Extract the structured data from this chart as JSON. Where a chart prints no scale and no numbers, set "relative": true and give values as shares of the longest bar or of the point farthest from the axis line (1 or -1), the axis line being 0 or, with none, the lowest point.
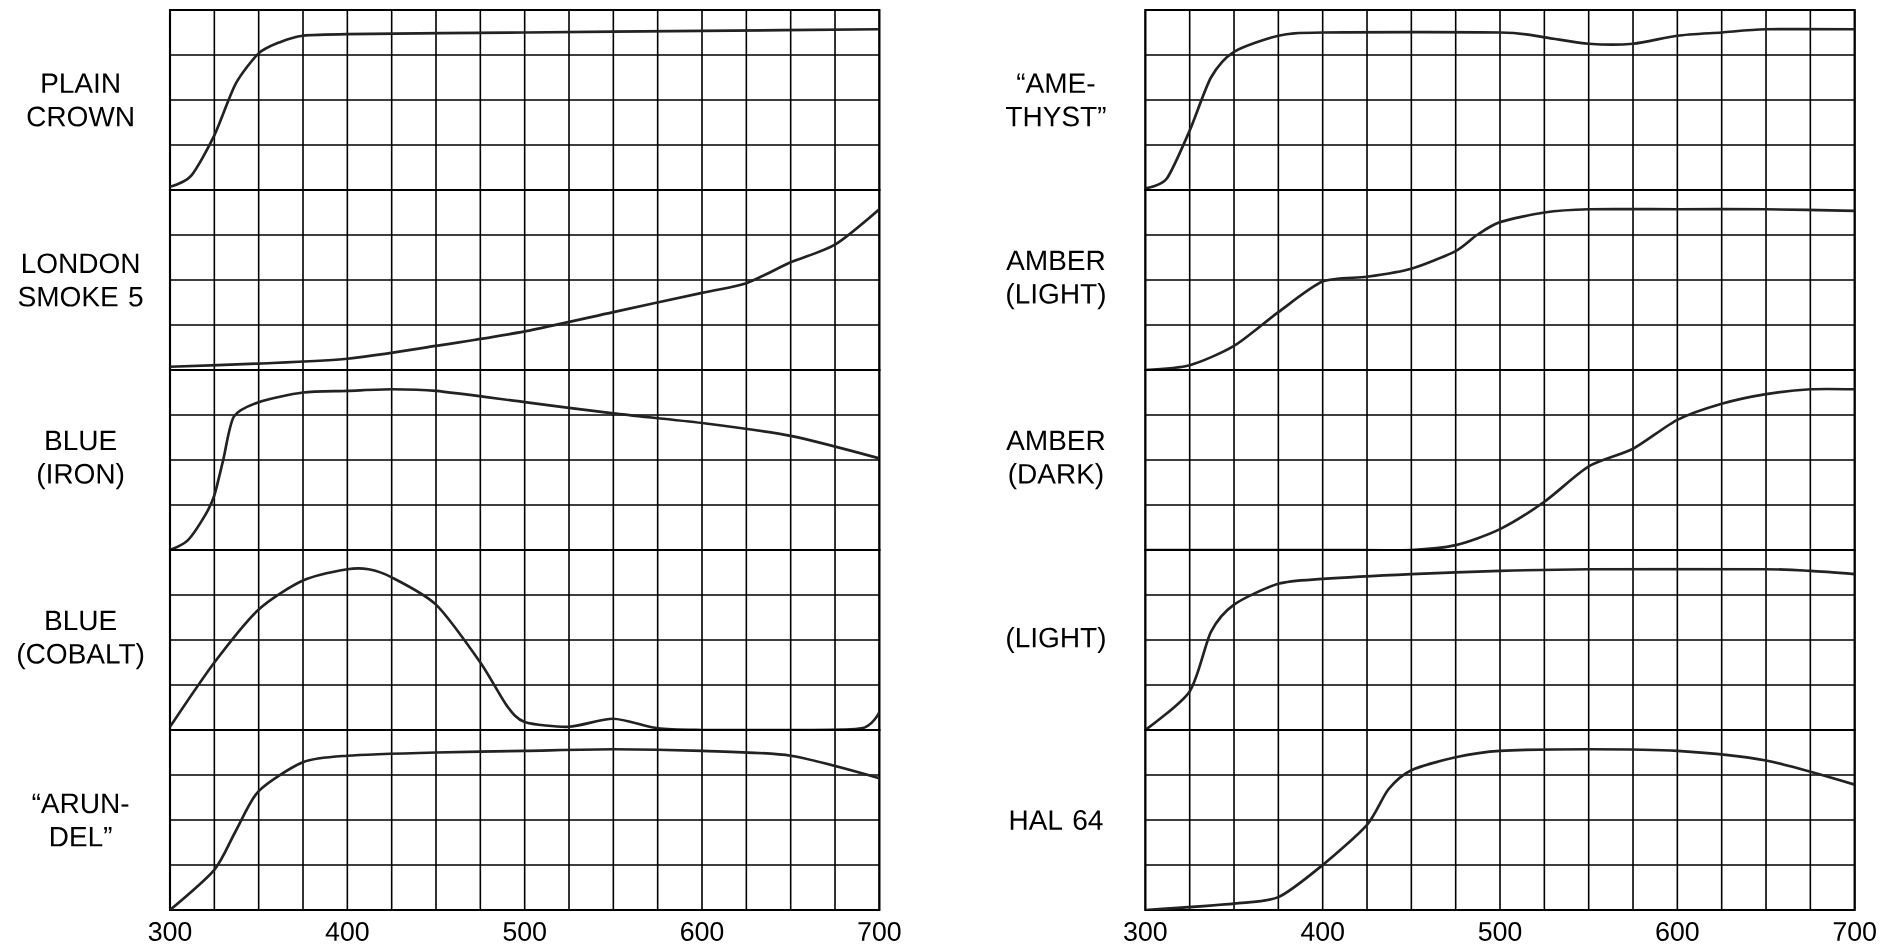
{
  "chart_data": [
    {
      "type": "line",
      "ylabel": "PLAIN CROWN",
      "relative": true,
      "grid": true,
      "marker": "none",
      "color": "#222222",
      "tick_labels": false,
      "xlim": [
        300,
        700
      ],
      "xticks": [
        300,
        {
          "value": 325,
          "label": null
        },
        {
          "value": 350,
          "label": null
        },
        {
          "value": 375,
          "label": null
        },
        400,
        {
          "value": 425,
          "label": null
        },
        {
          "value": 450,
          "label": null
        },
        {
          "value": 475,
          "label": null
        },
        500,
        {
          "value": 525,
          "label": null
        },
        {
          "value": 550,
          "label": null
        },
        {
          "value": 575,
          "label": null
        },
        600,
        {
          "value": 625,
          "label": null
        },
        {
          "value": 650,
          "label": null
        },
        {
          "value": 675,
          "label": null
        },
        700
      ],
      "x": [
        300,
        312,
        325,
        337,
        350,
        362,
        375,
        400,
        500,
        600,
        700
      ],
      "values": [
        0.02,
        0.09,
        0.34,
        0.66,
        0.85,
        0.92,
        0.96,
        0.97,
        0.98,
        0.99,
        1
      ]
    },
    {
      "type": "line",
      "ylabel": "LONDON SMOKE 5",
      "relative": true,
      "grid": true,
      "marker": "none",
      "color": "#222222",
      "tick_labels": false,
      "xlim": [
        300,
        700
      ],
      "xticks": [
        300,
        {
          "value": 325,
          "label": null
        },
        {
          "value": 350,
          "label": null
        },
        {
          "value": 375,
          "label": null
        },
        400,
        {
          "value": 425,
          "label": null
        },
        {
          "value": 450,
          "label": null
        },
        {
          "value": 475,
          "label": null
        },
        500,
        {
          "value": 525,
          "label": null
        },
        {
          "value": 550,
          "label": null
        },
        {
          "value": 575,
          "label": null
        },
        600,
        {
          "value": 625,
          "label": null
        },
        {
          "value": 650,
          "label": null
        },
        {
          "value": 675,
          "label": null
        },
        700
      ],
      "x": [
        300,
        350,
        400,
        450,
        500,
        550,
        600,
        625,
        650,
        675,
        700
      ],
      "values": [
        0.02,
        0.04,
        0.07,
        0.15,
        0.24,
        0.36,
        0.48,
        0.54,
        0.67,
        0.78,
        1
      ]
    },
    {
      "type": "line",
      "ylabel": "BLUE (IRON)",
      "relative": true,
      "grid": true,
      "marker": "none",
      "color": "#222222",
      "tick_labels": false,
      "xlim": [
        300,
        700
      ],
      "xticks": [
        300,
        {
          "value": 325,
          "label": null
        },
        {
          "value": 350,
          "label": null
        },
        {
          "value": 375,
          "label": null
        },
        400,
        {
          "value": 425,
          "label": null
        },
        {
          "value": 450,
          "label": null
        },
        {
          "value": 475,
          "label": null
        },
        500,
        {
          "value": 525,
          "label": null
        },
        {
          "value": 550,
          "label": null
        },
        {
          "value": 575,
          "label": null
        },
        600,
        {
          "value": 625,
          "label": null
        },
        {
          "value": 650,
          "label": null
        },
        {
          "value": 675,
          "label": null
        },
        700
      ],
      "x": [
        300,
        310,
        320,
        325,
        330,
        336,
        350,
        375,
        400,
        425,
        450,
        500,
        550,
        600,
        650,
        700
      ],
      "values": [
        0,
        0.06,
        0.22,
        0.34,
        0.56,
        0.83,
        0.92,
        0.98,
        0.99,
        1,
        0.99,
        0.92,
        0.85,
        0.79,
        0.71,
        0.57
      ]
    },
    {
      "type": "line",
      "ylabel": "BLUE (COBALT)",
      "relative": true,
      "grid": true,
      "marker": "none",
      "color": "#222222",
      "tick_labels": false,
      "xlim": [
        300,
        700
      ],
      "xticks": [
        300,
        {
          "value": 325,
          "label": null
        },
        {
          "value": 350,
          "label": null
        },
        {
          "value": 375,
          "label": null
        },
        400,
        {
          "value": 425,
          "label": null
        },
        {
          "value": 450,
          "label": null
        },
        {
          "value": 475,
          "label": null
        },
        500,
        {
          "value": 525,
          "label": null
        },
        {
          "value": 550,
          "label": null
        },
        {
          "value": 575,
          "label": null
        },
        600,
        {
          "value": 625,
          "label": null
        },
        {
          "value": 650,
          "label": null
        },
        {
          "value": 675,
          "label": null
        },
        700
      ],
      "x": [
        300,
        325,
        350,
        375,
        400,
        412,
        425,
        450,
        475,
        490,
        500,
        525,
        550,
        575,
        600,
        650,
        690,
        700
      ],
      "values": [
        0.02,
        0.42,
        0.75,
        0.93,
        1,
        1,
        0.95,
        0.78,
        0.42,
        0.15,
        0.05,
        0.02,
        0.07,
        0.01,
        0,
        0,
        0.01,
        0.11
      ]
    },
    {
      "type": "line",
      "ylabel": "“ARUN-DEL”",
      "relative": true,
      "grid": true,
      "marker": "none",
      "color": "#222222",
      "tick_labels": "x",
      "xlim": [
        300,
        700
      ],
      "xticks": [
        300,
        {
          "value": 325,
          "label": null
        },
        {
          "value": 350,
          "label": null
        },
        {
          "value": 375,
          "label": null
        },
        400,
        {
          "value": 425,
          "label": null
        },
        {
          "value": 450,
          "label": null
        },
        {
          "value": 475,
          "label": null
        },
        500,
        {
          "value": 525,
          "label": null
        },
        {
          "value": 550,
          "label": null
        },
        {
          "value": 575,
          "label": null
        },
        600,
        {
          "value": 625,
          "label": null
        },
        {
          "value": 650,
          "label": null
        },
        {
          "value": 675,
          "label": null
        },
        700
      ],
      "x": [
        300,
        325,
        337,
        350,
        375,
        400,
        450,
        500,
        550,
        600,
        650,
        700
      ],
      "values": [
        0,
        0.25,
        0.49,
        0.74,
        0.92,
        0.96,
        0.98,
        0.99,
        1,
        0.99,
        0.96,
        0.82
      ]
    },
    {
      "type": "line",
      "ylabel": "“AME-THYST”",
      "relative": true,
      "grid": true,
      "marker": "none",
      "color": "#222222",
      "tick_labels": false,
      "xlim": [
        300,
        700
      ],
      "xticks": [
        300,
        {
          "value": 325,
          "label": null
        },
        {
          "value": 350,
          "label": null
        },
        {
          "value": 375,
          "label": null
        },
        400,
        {
          "value": 425,
          "label": null
        },
        {
          "value": 450,
          "label": null
        },
        {
          "value": 475,
          "label": null
        },
        500,
        {
          "value": 525,
          "label": null
        },
        {
          "value": 550,
          "label": null
        },
        {
          "value": 575,
          "label": null
        },
        600,
        {
          "value": 625,
          "label": null
        },
        {
          "value": 650,
          "label": null
        },
        {
          "value": 675,
          "label": null
        },
        700
      ],
      "x": [
        300,
        312,
        325,
        337,
        350,
        375,
        400,
        500,
        525,
        550,
        575,
        600,
        625,
        650,
        700
      ],
      "values": [
        0.01,
        0.07,
        0.37,
        0.7,
        0.86,
        0.96,
        0.98,
        0.98,
        0.95,
        0.91,
        0.91,
        0.96,
        0.98,
        1,
        1
      ]
    },
    {
      "type": "line",
      "ylabel": "AMBER (LIGHT)",
      "relative": true,
      "grid": true,
      "marker": "none",
      "color": "#222222",
      "tick_labels": false,
      "xlim": [
        300,
        700
      ],
      "xticks": [
        300,
        {
          "value": 325,
          "label": null
        },
        {
          "value": 350,
          "label": null
        },
        {
          "value": 375,
          "label": null
        },
        400,
        {
          "value": 425,
          "label": null
        },
        {
          "value": 450,
          "label": null
        },
        {
          "value": 475,
          "label": null
        },
        500,
        {
          "value": 525,
          "label": null
        },
        {
          "value": 550,
          "label": null
        },
        {
          "value": 575,
          "label": null
        },
        600,
        {
          "value": 625,
          "label": null
        },
        {
          "value": 650,
          "label": null
        },
        {
          "value": 675,
          "label": null
        },
        700
      ],
      "x": [
        300,
        325,
        350,
        375,
        400,
        425,
        450,
        475,
        487,
        500,
        525,
        550,
        600,
        650,
        700
      ],
      "values": [
        0,
        0.03,
        0.15,
        0.36,
        0.55,
        0.58,
        0.63,
        0.74,
        0.84,
        0.92,
        0.98,
        1,
        1,
        1,
        0.99
      ]
    },
    {
      "type": "line",
      "ylabel": "AMBER (DARK)",
      "relative": true,
      "grid": true,
      "marker": "none",
      "color": "#222222",
      "tick_labels": false,
      "xlim": [
        300,
        700
      ],
      "xticks": [
        300,
        {
          "value": 325,
          "label": null
        },
        {
          "value": 350,
          "label": null
        },
        {
          "value": 375,
          "label": null
        },
        400,
        {
          "value": 425,
          "label": null
        },
        {
          "value": 450,
          "label": null
        },
        {
          "value": 475,
          "label": null
        },
        500,
        {
          "value": 525,
          "label": null
        },
        {
          "value": 550,
          "label": null
        },
        {
          "value": 575,
          "label": null
        },
        600,
        {
          "value": 625,
          "label": null
        },
        {
          "value": 650,
          "label": null
        },
        {
          "value": 675,
          "label": null
        },
        700
      ],
      "x": [
        300,
        400,
        450,
        475,
        500,
        525,
        550,
        575,
        600,
        625,
        650,
        675,
        700
      ],
      "values": [
        0,
        0,
        0,
        0.03,
        0.13,
        0.3,
        0.52,
        0.63,
        0.81,
        0.91,
        0.97,
        1,
        1
      ]
    },
    {
      "type": "line",
      "ylabel": "(LIGHT)",
      "relative": true,
      "grid": true,
      "marker": "none",
      "color": "#222222",
      "tick_labels": false,
      "xlim": [
        300,
        700
      ],
      "xticks": [
        300,
        {
          "value": 325,
          "label": null
        },
        {
          "value": 350,
          "label": null
        },
        {
          "value": 375,
          "label": null
        },
        400,
        {
          "value": 425,
          "label": null
        },
        {
          "value": 450,
          "label": null
        },
        {
          "value": 475,
          "label": null
        },
        500,
        {
          "value": 525,
          "label": null
        },
        {
          "value": 550,
          "label": null
        },
        {
          "value": 575,
          "label": null
        },
        600,
        {
          "value": 625,
          "label": null
        },
        {
          "value": 650,
          "label": null
        },
        {
          "value": 675,
          "label": null
        },
        700
      ],
      "x": [
        300,
        325,
        337,
        350,
        375,
        400,
        450,
        500,
        550,
        650,
        675,
        700
      ],
      "values": [
        0,
        0.24,
        0.61,
        0.78,
        0.91,
        0.94,
        0.97,
        0.99,
        1,
        1,
        0.99,
        0.97
      ]
    },
    {
      "type": "line",
      "ylabel": "HAL 64",
      "relative": true,
      "grid": true,
      "marker": "none",
      "color": "#222222",
      "tick_labels": "x",
      "xlim": [
        300,
        700
      ],
      "xticks": [
        300,
        {
          "value": 325,
          "label": null
        },
        {
          "value": 350,
          "label": null
        },
        {
          "value": 375,
          "label": null
        },
        400,
        {
          "value": 425,
          "label": null
        },
        {
          "value": 450,
          "label": null
        },
        {
          "value": 475,
          "label": null
        },
        500,
        {
          "value": 525,
          "label": null
        },
        {
          "value": 550,
          "label": null
        },
        {
          "value": 575,
          "label": null
        },
        600,
        {
          "value": 625,
          "label": null
        },
        {
          "value": 650,
          "label": null
        },
        {
          "value": 675,
          "label": null
        },
        700
      ],
      "x": [
        300,
        350,
        375,
        400,
        425,
        437,
        450,
        475,
        500,
        550,
        600,
        650,
        700
      ],
      "values": [
        0,
        0.04,
        0.08,
        0.28,
        0.53,
        0.75,
        0.87,
        0.95,
        0.99,
        1,
        0.99,
        0.93,
        0.78
      ]
    }
  ]
}
